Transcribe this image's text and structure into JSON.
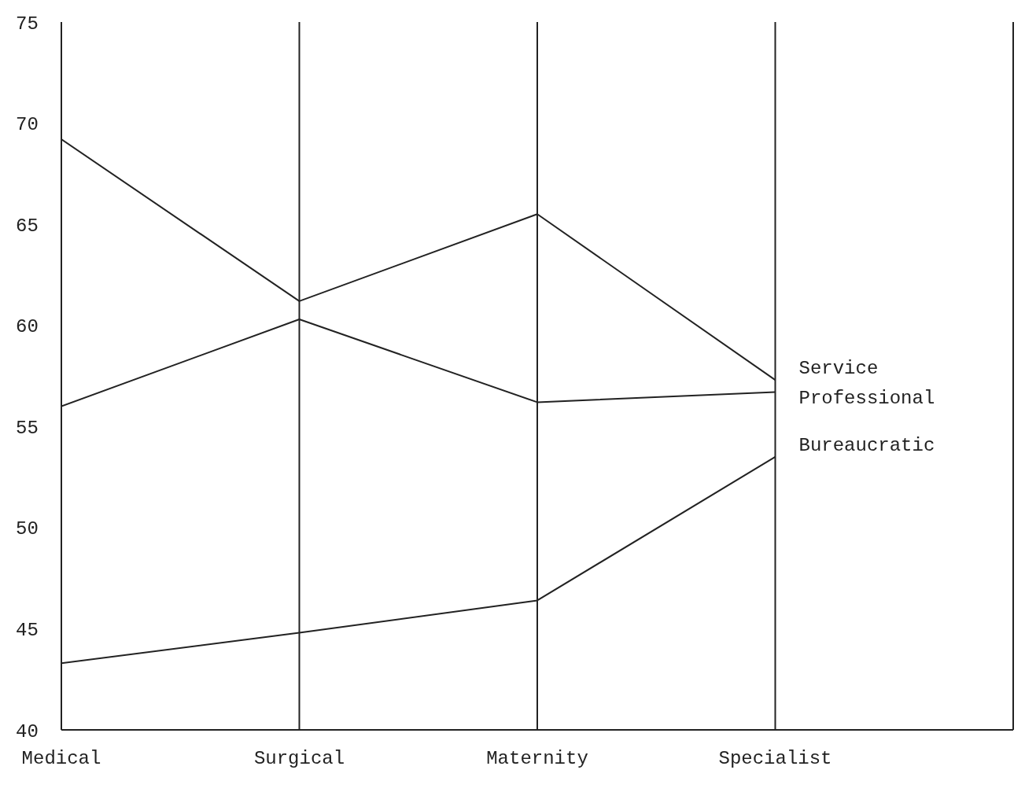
{
  "chart_data": {
    "type": "line",
    "categories": [
      "Medical",
      "Surgical",
      "Maternity",
      "Specialist",
      null
    ],
    "series": [
      {
        "name": "Service",
        "color": "#222222",
        "values": [
          69.2,
          61.2,
          65.5,
          57.3,
          null
        ]
      },
      {
        "name": "Professional",
        "color": "#222222",
        "values": [
          56,
          60.3,
          56.2,
          56.7,
          null
        ]
      },
      {
        "name": "Bureaucratic",
        "color": "#222222",
        "values": [
          43.3,
          44.8,
          46.4,
          53.5,
          null
        ]
      }
    ],
    "ylim": [
      40,
      75
    ],
    "yticks": [
      40,
      45,
      50,
      55,
      60,
      65,
      70,
      75
    ],
    "grid": "x",
    "legend": false,
    "marker": "none",
    "line_style": "solid"
  }
}
